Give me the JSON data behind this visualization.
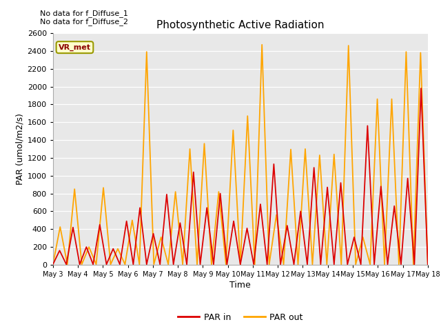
{
  "title": "Photosynthetic Active Radiation",
  "xlabel": "Time",
  "ylabel": "PAR (umol/m2/s)",
  "background_color": "#e8e8e8",
  "text_annotations": [
    "No data for f_Diffuse_1",
    "No data for f_Diffuse_2"
  ],
  "legend_box_label": "VR_met",
  "legend_box_color": "#ffffcc",
  "legend_box_border": "#999900",
  "par_in_color": "#dd0000",
  "par_out_color": "#FFA500",
  "ylim": [
    0,
    2600
  ],
  "x_tick_labels": [
    "May 3",
    "May 4",
    "May 5",
    "May 6",
    "May 7",
    "May 8",
    "May 9",
    "May 10",
    "May 11",
    "May 12",
    "May 13",
    "May 14",
    "May 15",
    "May 16",
    "May 17",
    "May 18"
  ],
  "par_in": [
    5,
    160,
    5,
    420,
    5,
    200,
    5,
    450,
    5,
    180,
    5,
    490,
    5,
    640,
    5,
    350,
    5,
    790,
    5,
    470,
    5,
    1040,
    5,
    640,
    5,
    800,
    5,
    490,
    5,
    410,
    5,
    680,
    5,
    1130,
    5,
    440,
    5,
    600,
    5,
    1090,
    5,
    870,
    5,
    920,
    5,
    310,
    5,
    1560,
    5,
    880,
    5,
    660,
    5,
    970,
    5,
    1980,
    5
  ],
  "par_out": [
    5,
    425,
    5,
    850,
    5,
    200,
    5,
    865,
    5,
    180,
    5,
    500,
    5,
    2390,
    5,
    310,
    5,
    820,
    5,
    1300,
    5,
    1360,
    5,
    820,
    5,
    1510,
    5,
    1670,
    5,
    2470,
    5,
    560,
    5,
    1295,
    5,
    1300,
    5,
    1230,
    5,
    1240,
    5,
    2460,
    5,
    310,
    5,
    1860,
    5,
    1860,
    5,
    2390,
    5,
    2380,
    5
  ],
  "figsize": [
    6.4,
    4.8
  ],
  "dpi": 100
}
